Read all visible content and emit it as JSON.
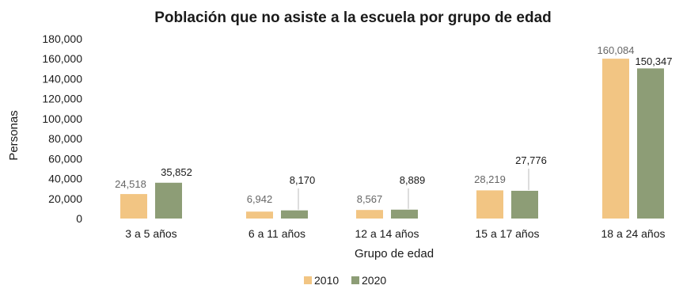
{
  "chart_data": {
    "type": "bar",
    "title": "Población que no asiste a la escuela por grupo de edad",
    "xlabel": "Grupo de edad",
    "ylabel": "Personas",
    "ylim": [
      0,
      180000
    ],
    "yticks": [
      0,
      20000,
      40000,
      60000,
      80000,
      100000,
      120000,
      140000,
      160000,
      180000
    ],
    "ytick_labels": [
      "0",
      "20,000",
      "40,000",
      "60,000",
      "80,000",
      "100,000",
      "120,000",
      "140,000",
      "160,000",
      "180,000"
    ],
    "grid": false,
    "legend_position": "bottom",
    "categories": [
      "3 a 5 años",
      "6 a 11 años",
      "12 a 14 años",
      "15 a 17 años",
      "18 a 24 años"
    ],
    "series": [
      {
        "name": "2010",
        "color": "#f2c583",
        "label_color": "#666666",
        "values": [
          24518,
          6942,
          8567,
          28219,
          160084
        ],
        "labels": [
          "24,518",
          "6,942",
          "8,567",
          "28,219",
          "160,084"
        ]
      },
      {
        "name": "2020",
        "color": "#8d9d76",
        "label_color": "#1a1a1a",
        "values": [
          35852,
          8170,
          8889,
          27776,
          150347
        ],
        "labels": [
          "35,852",
          "8,170",
          "8,889",
          "27,776",
          "150,347"
        ]
      }
    ]
  }
}
